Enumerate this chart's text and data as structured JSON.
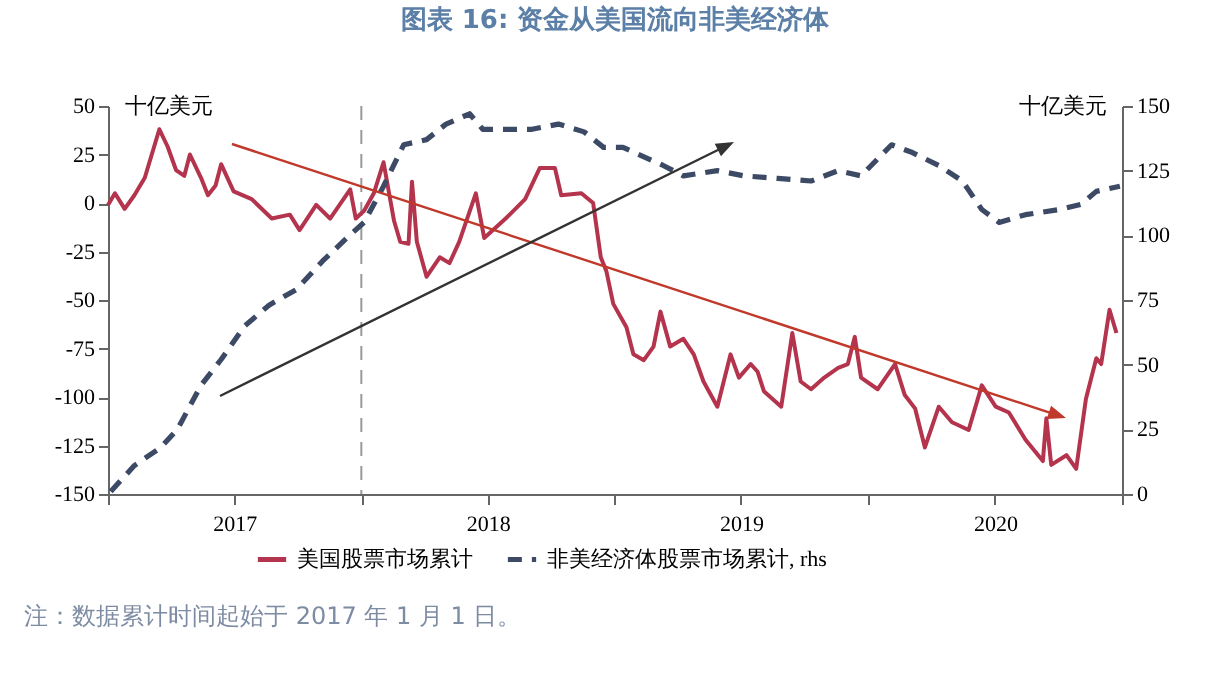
{
  "chart_data": {
    "type": "line",
    "title": "图表 16: 资金从美国流向非美经济体",
    "ylabel": "十亿美元",
    "y2label": "十亿美元",
    "annotations": [
      "注：数据累计时间起始于 2017 年 1 月 1 日。"
    ],
    "xlim": [
      "2017-01-01",
      "2021-01-01"
    ],
    "xticks": [
      {
        "value": "2017-01-01",
        "label": null
      },
      {
        "value": "2017-07-02",
        "label": "2017"
      },
      {
        "value": "2018-01-01",
        "label": null
      },
      {
        "value": "2018-07-02",
        "label": "2018"
      },
      {
        "value": "2019-01-01",
        "label": null
      },
      {
        "value": "2019-07-02",
        "label": "2019"
      },
      {
        "value": "2020-01-01",
        "label": null
      },
      {
        "value": "2020-07-02",
        "label": "2020"
      },
      {
        "value": "2021-01-01",
        "label": null
      }
    ],
    "ylim": [
      -150,
      50
    ],
    "yticks": [
      -150,
      -125,
      -100,
      -75,
      -50,
      -25,
      0,
      25,
      50
    ],
    "y2lim": [
      0,
      150
    ],
    "y2ticks": [
      0,
      25,
      50,
      75,
      100,
      125,
      150
    ],
    "grid": false,
    "legend": "bottom",
    "ref_lines": [
      {
        "axis": "x",
        "value": "2018-01-01",
        "color": "#9a9a9a",
        "line_style": "dashed"
      }
    ],
    "series": [
      {
        "name": "美国股票市场累计",
        "color": "#b4344d",
        "line_style": "solid",
        "x": [
          "2017-01-01",
          "2017-01-11",
          "2017-01-25",
          "2017-02-08",
          "2017-02-23",
          "2017-03-16",
          "2017-03-28",
          "2017-04-09",
          "2017-04-21",
          "2017-04-29",
          "2017-05-15",
          "2017-05-25",
          "2017-06-05",
          "2017-06-13",
          "2017-07-01",
          "2017-07-27",
          "2017-08-25",
          "2017-09-20",
          "2017-10-04",
          "2017-10-28",
          "2017-11-17",
          "2017-12-16",
          "2017-12-24",
          "2018-01-05",
          "2018-01-19",
          "2018-02-02",
          "2018-02-17",
          "2018-02-26",
          "2018-03-10",
          "2018-03-15",
          "2018-03-22",
          "2018-04-05",
          "2018-04-24",
          "2018-05-08",
          "2018-05-22",
          "2018-06-15",
          "2018-06-27",
          "2018-07-28",
          "2018-08-25",
          "2018-09-15",
          "2018-10-07",
          "2018-10-16",
          "2018-11-14",
          "2018-12-01",
          "2018-12-12",
          "2018-12-20",
          "2018-12-30",
          "2019-01-18",
          "2019-01-28",
          "2019-02-12",
          "2019-02-26",
          "2019-03-08",
          "2019-03-22",
          "2019-04-10",
          "2019-04-25",
          "2019-05-09",
          "2019-05-29",
          "2019-06-17",
          "2019-06-29",
          "2019-07-16",
          "2019-07-26",
          "2019-08-04",
          "2019-08-29",
          "2019-09-14",
          "2019-09-26",
          "2019-10-11",
          "2019-10-30",
          "2019-11-19",
          "2019-12-03",
          "2019-12-13",
          "2019-12-22",
          "2020-01-15",
          "2020-02-09",
          "2020-02-23",
          "2020-03-09",
          "2020-03-23",
          "2020-04-12",
          "2020-05-01",
          "2020-05-25",
          "2020-06-13",
          "2020-07-03",
          "2020-07-22",
          "2020-08-15",
          "2020-09-09",
          "2020-09-14",
          "2020-09-21",
          "2020-10-13",
          "2020-10-27",
          "2020-11-10",
          "2020-11-25",
          "2020-12-02",
          "2020-12-14",
          "2020-12-24"
        ],
        "values": [
          -1,
          5,
          -3,
          4,
          13,
          38,
          29,
          17,
          14,
          25,
          13,
          4,
          9,
          20,
          6,
          2,
          -8,
          -6,
          -14,
          -1,
          -8,
          7,
          -8,
          -4,
          5,
          21,
          -9,
          -20,
          -21,
          11,
          -20,
          -38,
          -28,
          -31,
          -20,
          5,
          -18,
          -8,
          2,
          18,
          18,
          4,
          5,
          0,
          -28,
          -35,
          -52,
          -64,
          -78,
          -81,
          -74,
          -56,
          -74,
          -70,
          -78,
          -92,
          -105,
          -78,
          -90,
          -83,
          -87,
          -97,
          -105,
          -67,
          -92,
          -96,
          -90,
          -85,
          -83,
          -69,
          -90,
          -96,
          -83,
          -99,
          -106,
          -126,
          -105,
          -113,
          -117,
          -94,
          -105,
          -108,
          -122,
          -133,
          -111,
          -135,
          -130,
          -137,
          -101,
          -80,
          -83,
          -55,
          -67
        ]
      },
      {
        "name": "非美经济体股票市场累计, rhs",
        "color": "#3d4a66",
        "line_style": "dashed",
        "axis": "y2",
        "x": [
          "2017-01-05",
          "2017-02-08",
          "2017-03-18",
          "2017-04-11",
          "2017-05-15",
          "2017-06-13",
          "2017-07-17",
          "2017-08-21",
          "2017-09-29",
          "2017-11-06",
          "2017-12-15",
          "2018-01-05",
          "2018-02-02",
          "2018-03-03",
          "2018-04-05",
          "2018-05-03",
          "2018-06-06",
          "2018-06-25",
          "2018-07-28",
          "2018-09-04",
          "2018-10-12",
          "2018-11-18",
          "2018-12-16",
          "2019-01-13",
          "2019-03-12",
          "2019-04-10",
          "2019-05-29",
          "2019-07-06",
          "2019-08-24",
          "2019-10-11",
          "2019-11-19",
          "2019-12-22",
          "2020-02-04",
          "2020-03-05",
          "2020-04-12",
          "2020-05-16",
          "2020-06-13",
          "2020-07-08",
          "2020-08-15",
          "2020-10-04",
          "2020-11-03",
          "2020-11-25",
          "2020-12-29"
        ],
        "values": [
          1,
          11,
          18,
          25,
          42,
          52,
          65,
          73,
          79,
          90,
          100,
          105,
          119,
          135,
          137,
          143,
          147,
          141,
          141,
          141,
          143,
          140,
          134,
          134,
          127,
          123,
          125,
          123,
          122,
          121,
          125,
          123,
          135,
          132,
          127,
          121,
          110,
          105,
          108,
          110,
          112,
          117,
          119
        ]
      }
    ]
  }
}
